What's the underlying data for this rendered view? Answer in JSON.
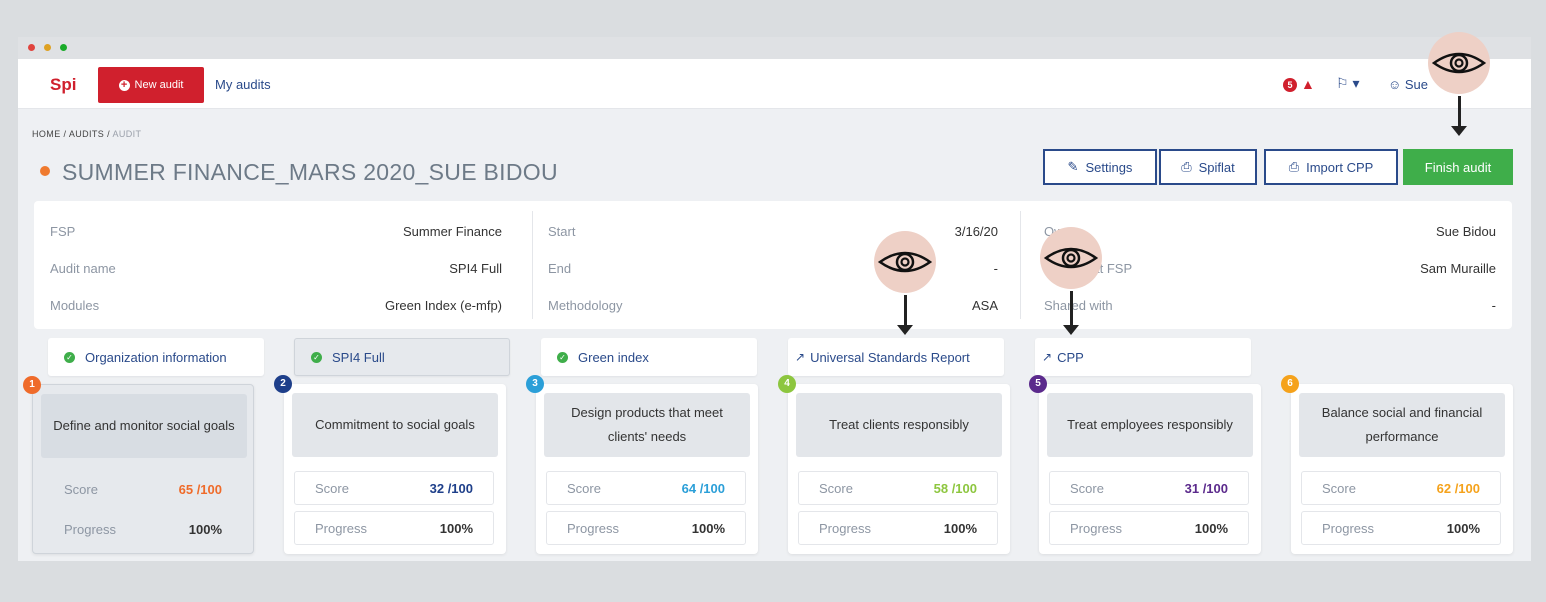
{
  "nav": {
    "logo": "Spi",
    "new_audit": "New audit",
    "my_audits": "My audits",
    "notif_count": "5",
    "user": "Sue"
  },
  "breadcrumb": {
    "home": "HOME /",
    "audits": "AUDITS /",
    "current": "AUDIT"
  },
  "title": "SUMMER FINANCE_MARS 2020_SUE BIDOU",
  "actions": {
    "settings": "Settings",
    "spiflat": "Spiflat",
    "import_cpp": "Import CPP",
    "finish": "Finish audit"
  },
  "info": {
    "col1": [
      {
        "k": "FSP",
        "v": "Summer Finance"
      },
      {
        "k": "Audit name",
        "v": "SPI4 Full"
      },
      {
        "k": "Modules",
        "v": "Green Index (e-mfp)"
      }
    ],
    "col2": [
      {
        "k": "Start",
        "v": "3/16/20"
      },
      {
        "k": "End",
        "v": "-"
      },
      {
        "k": "Methodology",
        "v": "ASA"
      }
    ],
    "col3": [
      {
        "k": "Owner",
        "v": "Sue Bidou"
      },
      {
        "k": "Contact at FSP",
        "v": "Sam Muraille"
      },
      {
        "k": "Shared with",
        "v": "-"
      }
    ]
  },
  "tabs": [
    {
      "label": "Organization information"
    },
    {
      "label": "SPI4 Full"
    },
    {
      "label": "Green index"
    },
    {
      "label": "Universal Standards Report"
    },
    {
      "label": "CPP"
    }
  ],
  "cards": [
    {
      "n": "1",
      "title": "Define and monitor social goals",
      "score_label": "Score",
      "score": "65 /100",
      "progress_label": "Progress",
      "progress": "100%",
      "color": "#ef6b2a"
    },
    {
      "n": "2",
      "title": "Commitment to social goals",
      "score_label": "Score",
      "score": "32 /100",
      "progress_label": "Progress",
      "progress": "100%",
      "color": "#1e3f8a"
    },
    {
      "n": "3",
      "title": "Design products that meet clients' needs",
      "score_label": "Score",
      "score": "64 /100",
      "progress_label": "Progress",
      "progress": "100%",
      "color": "#2b9fd8"
    },
    {
      "n": "4",
      "title": "Treat clients responsibly",
      "score_label": "Score",
      "score": "58 /100",
      "progress_label": "Progress",
      "progress": "100%",
      "color": "#8dc63f"
    },
    {
      "n": "5",
      "title": "Treat employees responsibly",
      "score_label": "Score",
      "score": "31 /100",
      "progress_label": "Progress",
      "progress": "100%",
      "color": "#5b2a8c"
    },
    {
      "n": "6",
      "title": "Balance social and financial performance",
      "score_label": "Score",
      "score": "62 /100",
      "progress_label": "Progress",
      "progress": "100%",
      "color": "#f5a21b"
    }
  ]
}
